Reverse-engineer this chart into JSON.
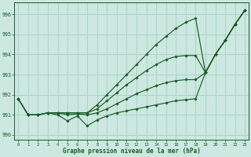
{
  "title": "Graphe pression niveau de la mer (hPa)",
  "hours": [
    0,
    1,
    2,
    3,
    4,
    5,
    6,
    7,
    8,
    9,
    10,
    11,
    12,
    13,
    14,
    15,
    16,
    17,
    18,
    19,
    20,
    21,
    22,
    23
  ],
  "line1_top": [
    991.8,
    991.0,
    991.0,
    991.1,
    991.1,
    991.1,
    991.1,
    991.1,
    991.5,
    992.0,
    992.5,
    993.0,
    993.5,
    994.0,
    994.5,
    994.9,
    995.3,
    995.6,
    995.8,
    993.1,
    994.0,
    994.7,
    995.5,
    996.2
  ],
  "line2_high": [
    991.8,
    991.0,
    991.0,
    991.1,
    991.1,
    991.1,
    991.1,
    991.1,
    991.3,
    991.7,
    992.1,
    992.5,
    992.85,
    993.2,
    993.5,
    993.75,
    993.9,
    993.95,
    993.95,
    993.1,
    994.0,
    994.7,
    995.5,
    996.2
  ],
  "line3_mid": [
    991.8,
    991.0,
    991.0,
    991.1,
    991.1,
    991.0,
    991.05,
    991.0,
    991.1,
    991.3,
    991.55,
    991.8,
    992.05,
    992.25,
    992.45,
    992.6,
    992.7,
    992.75,
    992.75,
    993.1,
    994.0,
    994.7,
    995.5,
    996.2
  ],
  "line4_low": [
    991.8,
    991.0,
    991.0,
    991.1,
    991.0,
    990.7,
    990.95,
    990.45,
    990.75,
    990.95,
    991.1,
    991.2,
    991.3,
    991.4,
    991.5,
    991.6,
    991.7,
    991.75,
    991.8,
    993.1,
    994.0,
    994.7,
    995.5,
    996.2
  ],
  "bg_color": "#cce8e0",
  "grid_color": "#aad4c8",
  "line_color": "#1a5c28",
  "ylim": [
    989.75,
    996.6
  ],
  "yticks": [
    990,
    991,
    992,
    993,
    994,
    995,
    996
  ],
  "xlim": [
    -0.4,
    23.4
  ]
}
